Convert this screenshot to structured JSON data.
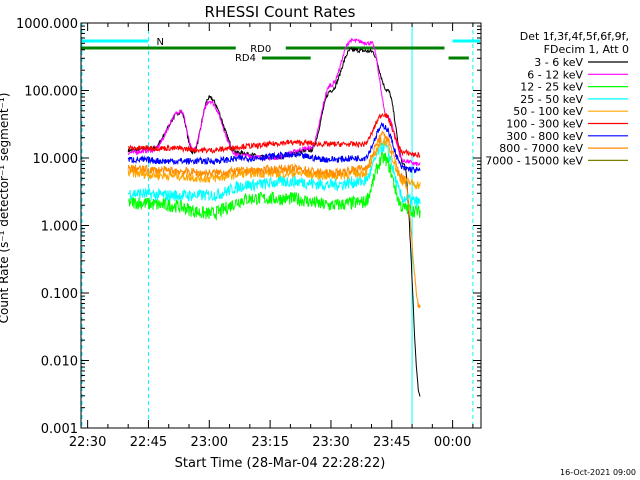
{
  "chart_data": {
    "type": "line",
    "title": "RHESSI Count Rates",
    "xlabel": "Start Time (28-Mar-04 22:28:22)",
    "ylabel": "Count Rate (s⁻¹ detector⁻¹ segment⁻¹)",
    "y_scale": "log",
    "ylim": [
      0.001,
      1000
    ],
    "xlim": [
      "22:28:22",
      "00:07:00"
    ],
    "x_tick_labels": [
      "22:30",
      "22:45",
      "23:00",
      "23:15",
      "23:30",
      "23:45",
      "00:00"
    ],
    "y_tick_labels": [
      "1000.000",
      "100.000",
      "10.000",
      "1.000",
      "0.100",
      "0.010",
      "0.001"
    ],
    "grid": false,
    "legend_position": "right",
    "legend_header": [
      "Det 1f,3f,4f,5f,6f,9f,",
      "FDecim 1, Att 0"
    ],
    "series": [
      {
        "name": "3 - 6 keV",
        "color": "#000000",
        "x": [
          "22:40",
          "22:46",
          "22:53",
          "22:56",
          "23:00",
          "23:07",
          "23:15",
          "23:25",
          "23:30",
          "23:35",
          "23:40",
          "23:44",
          "23:48",
          "23:52"
        ],
        "values": [
          13,
          14,
          48,
          12,
          78,
          12,
          10,
          13,
          100,
          400,
          380,
          100,
          8,
          0.003
        ]
      },
      {
        "name": "6 - 12 keV",
        "color": "#ff00ff",
        "x": [
          "22:40",
          "22:46",
          "22:53",
          "22:56",
          "23:00",
          "23:07",
          "23:15",
          "23:25",
          "23:30",
          "23:35",
          "23:40",
          "23:44",
          "23:48",
          "23:52"
        ],
        "values": [
          12,
          13,
          50,
          13,
          70,
          11,
          10,
          14,
          120,
          550,
          500,
          40,
          9,
          8
        ]
      },
      {
        "name": "12 - 25 keV",
        "color": "#00ff00",
        "x": [
          "22:40",
          "22:50",
          "23:00",
          "23:10",
          "23:20",
          "23:30",
          "23:38",
          "23:43",
          "23:48",
          "23:52"
        ],
        "values": [
          2.2,
          2.0,
          1.5,
          2.5,
          2.5,
          2.0,
          2.2,
          10,
          1.8,
          1.6
        ]
      },
      {
        "name": "25 - 50 keV",
        "color": "#00ffff",
        "x": [
          "22:40",
          "22:50",
          "23:00",
          "23:10",
          "23:20",
          "23:30",
          "23:38",
          "23:43",
          "23:48",
          "23:52"
        ],
        "values": [
          3.0,
          2.8,
          2.8,
          4.0,
          4.5,
          4.0,
          4.5,
          15,
          2.5,
          2.2
        ]
      },
      {
        "name": "50 - 100 keV",
        "color": "#ffa500",
        "x": [
          "22:40",
          "22:50",
          "23:00",
          "23:10",
          "23:20",
          "23:30",
          "23:38",
          "23:43",
          "23:48",
          "23:52"
        ],
        "values": [
          6.0,
          5.5,
          5.0,
          6.0,
          6.0,
          5.5,
          6.0,
          18,
          4.5,
          4.0
        ]
      },
      {
        "name": "100 - 300 keV",
        "color": "#ff0000",
        "x": [
          "22:40",
          "22:50",
          "23:00",
          "23:10",
          "23:20",
          "23:30",
          "23:38",
          "23:43",
          "23:48",
          "23:52"
        ],
        "values": [
          14,
          14,
          13,
          15,
          17,
          16,
          16,
          45,
          12,
          11
        ]
      },
      {
        "name": "300 - 800 keV",
        "color": "#0000ff",
        "x": [
          "22:40",
          "22:50",
          "23:00",
          "23:10",
          "23:20",
          "23:30",
          "23:38",
          "23:43",
          "23:48",
          "23:52"
        ],
        "values": [
          9.5,
          9.0,
          9.0,
          10,
          11,
          9.5,
          10,
          30,
          7,
          6.5
        ]
      },
      {
        "name": "800 - 7000 keV",
        "color": "#ff8c00",
        "x": [
          "22:40",
          "22:50",
          "23:00",
          "23:10",
          "23:20",
          "23:30",
          "23:38",
          "23:43",
          "23:48",
          "23:52"
        ],
        "values": [
          7.0,
          6.5,
          6.0,
          6.5,
          7.0,
          6.0,
          7.0,
          22,
          5,
          0.06
        ]
      },
      {
        "name": "7000 - 15000 keV",
        "color": "#808000",
        "x": [
          "22:40",
          "23:52"
        ],
        "values": [
          null,
          null
        ]
      }
    ],
    "annotations": [
      {
        "label": "N",
        "color": "#00ffff",
        "x_start": "22:28:22",
        "x_end": "22:45",
        "level": "top"
      },
      {
        "label": "",
        "color": "#00ffff",
        "x_start": "00:00",
        "x_end": "00:07:00",
        "level": "top"
      },
      {
        "label": "RD0",
        "color": "#008000",
        "x_start": "22:28:22",
        "x_end": "23:58",
        "level": "middle"
      },
      {
        "label": "RD4",
        "color": "#008000",
        "x_start": "23:13",
        "x_end": "23:25",
        "level": "lower"
      },
      {
        "label": "",
        "color": "#008000",
        "x_start": "23:59",
        "x_end": "00:04",
        "level": "lower"
      }
    ],
    "vertical_markers": [
      {
        "x": "22:28:22",
        "color": "#00ffff",
        "style": "dashed"
      },
      {
        "x": "22:45",
        "color": "#00ffff",
        "style": "dashed"
      },
      {
        "x": "23:50",
        "color": "#00ffff",
        "style": "solid"
      },
      {
        "x": "00:05",
        "color": "#00ffff",
        "style": "dashed"
      }
    ]
  },
  "footer": {
    "timestamp": "16-Oct-2021 09:00"
  }
}
